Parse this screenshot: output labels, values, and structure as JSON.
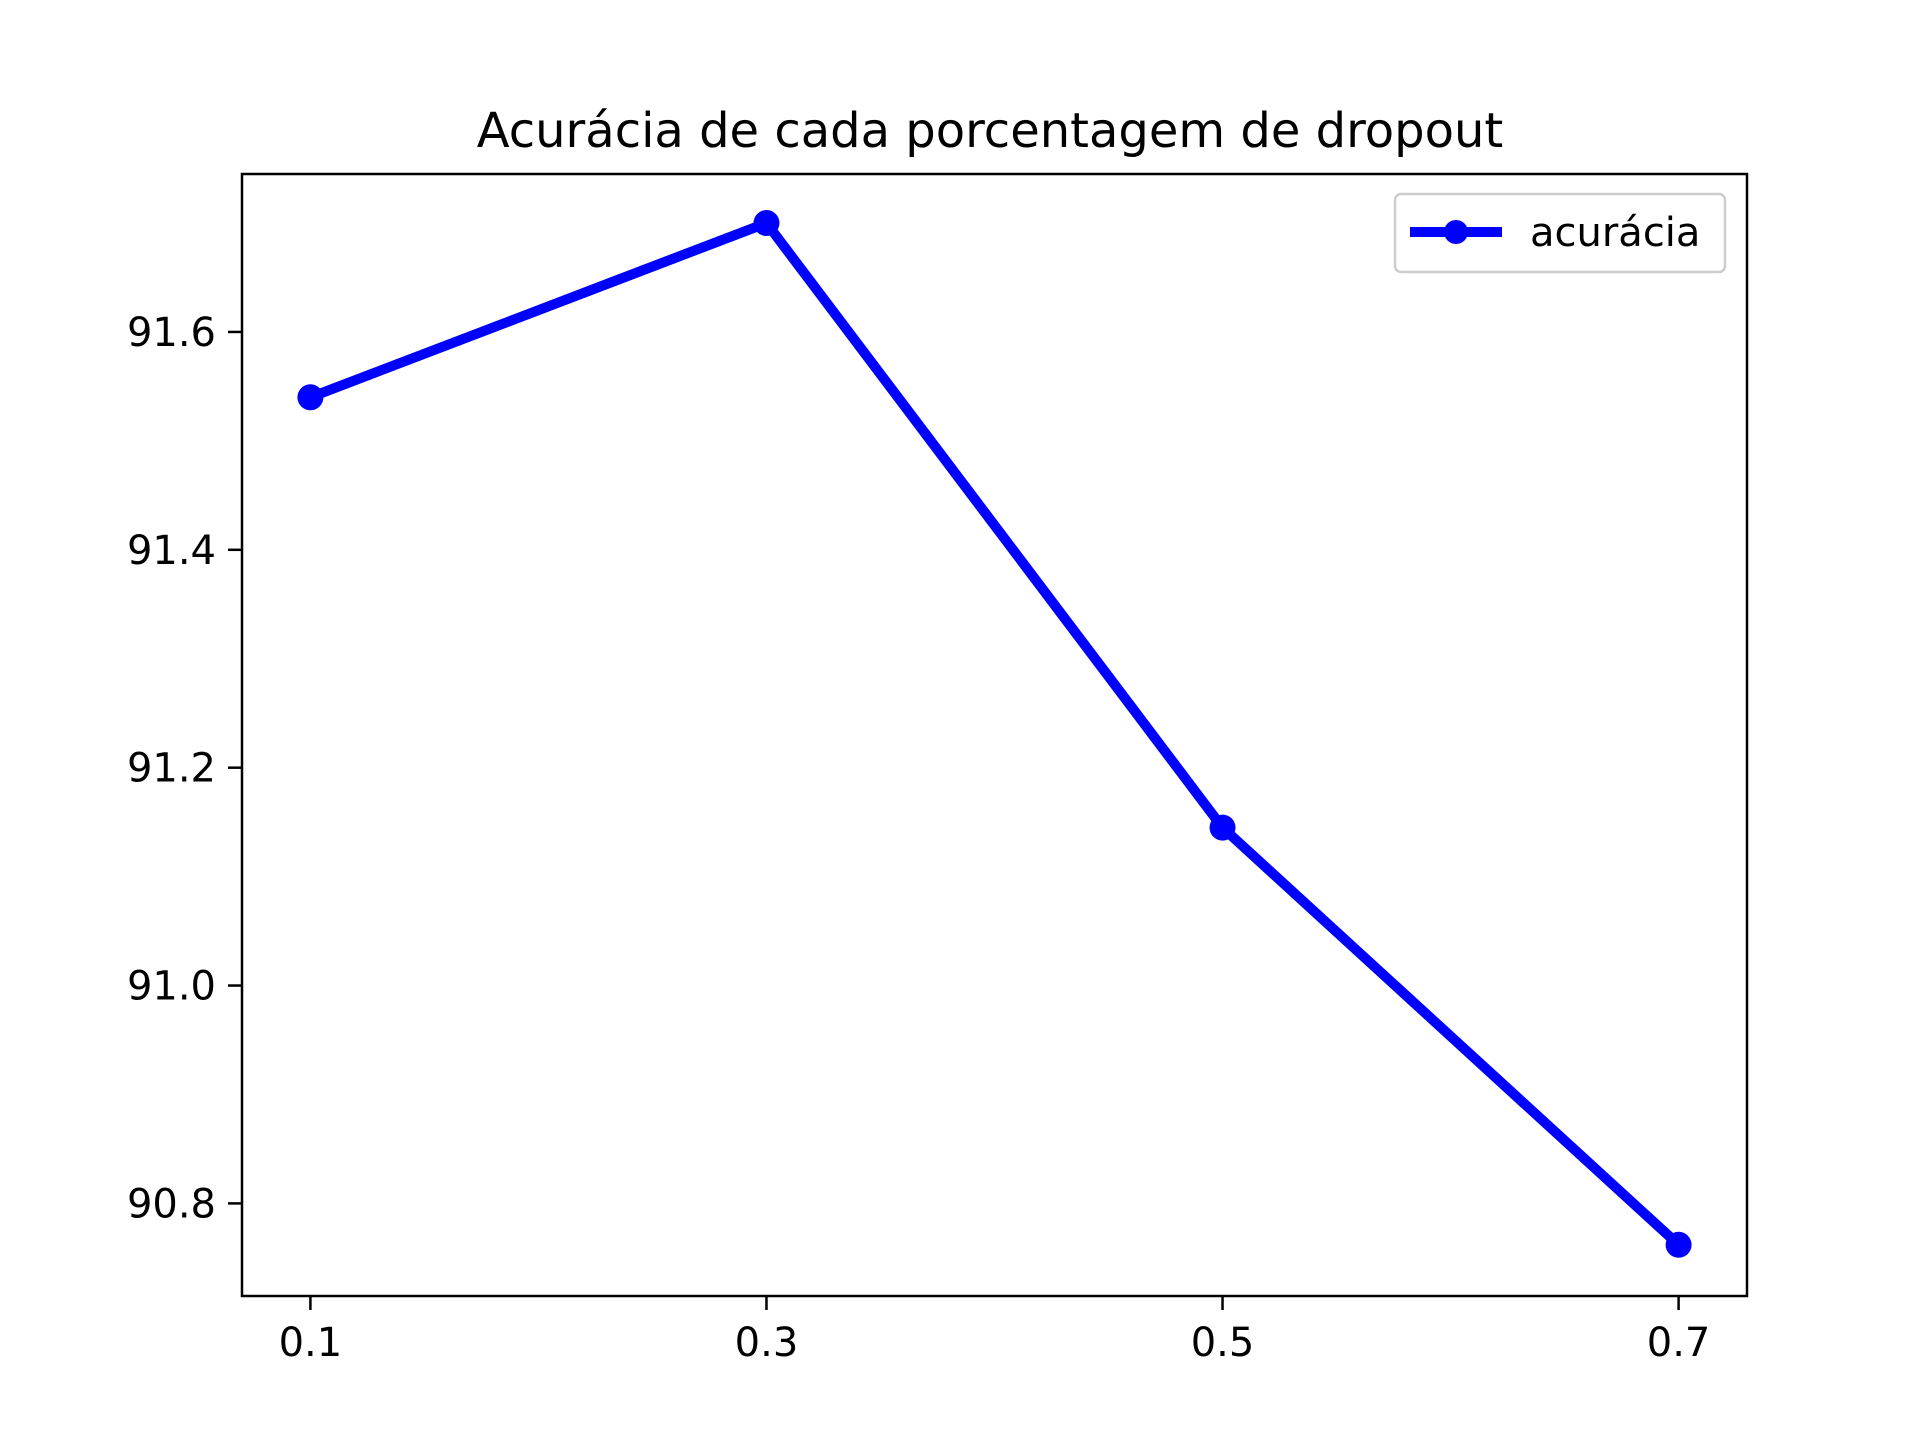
{
  "chart_data": {
    "type": "line",
    "title": "Acurácia de cada porcentagem de dropout",
    "xlabel": "",
    "ylabel": "",
    "categories": [
      "0.1",
      "0.3",
      "0.5",
      "0.7"
    ],
    "x": [
      0.1,
      0.3,
      0.5,
      0.7
    ],
    "xlim": [
      0.07,
      0.73
    ],
    "ylim": [
      90.715,
      91.745
    ],
    "yticks": [
      90.8,
      91.0,
      91.2,
      91.4,
      91.6
    ],
    "ytick_labels": [
      "90.8",
      "91.0",
      "91.2",
      "91.4",
      "91.6"
    ],
    "grid": false,
    "legend": "top-right",
    "series": [
      {
        "name": "acurácia",
        "values": [
          91.54,
          91.7,
          91.145,
          90.762
        ],
        "color": "#0000ff",
        "marker": "circle"
      }
    ]
  }
}
